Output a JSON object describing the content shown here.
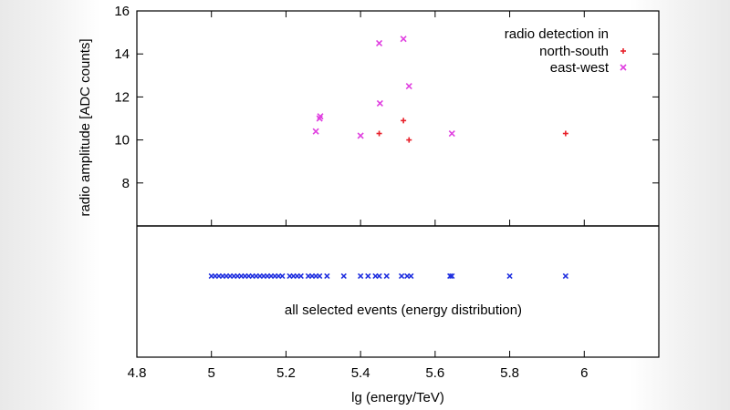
{
  "chart_data": {
    "type": "scatter",
    "title": "",
    "xlabel": "lg (energy/TeV)",
    "ylabel": "radio amplitude [ADC counts]",
    "xlim": [
      4.8,
      6.2
    ],
    "ylim": [
      6,
      16
    ],
    "x_ticks": [
      "4.8",
      "5",
      "5.2",
      "5.4",
      "5.6",
      "5.8",
      "6"
    ],
    "x_tick_values": [
      4.8,
      5.0,
      5.2,
      5.4,
      5.6,
      5.8,
      6.0
    ],
    "y_ticks": [
      "8",
      "10",
      "12",
      "14",
      "16"
    ],
    "y_tick_values": [
      8,
      10,
      12,
      14,
      16
    ],
    "grid": false,
    "legend": {
      "title": "radio detection in",
      "placement": "top-right",
      "entries": [
        "north-south",
        "east-west"
      ]
    },
    "series": [
      {
        "name": "north-south",
        "color": "#e8202a",
        "marker": "plus",
        "x": [
          5.45,
          5.515,
          5.53,
          5.95
        ],
        "y": [
          10.3,
          10.9,
          10.0,
          10.3
        ]
      },
      {
        "name": "east-west",
        "color": "#e040e0",
        "marker": "cross",
        "x": [
          5.28,
          5.29,
          5.292,
          5.4,
          5.45,
          5.452,
          5.515,
          5.53,
          5.645
        ],
        "y": [
          10.4,
          11.0,
          11.1,
          10.2,
          14.5,
          11.7,
          14.7,
          12.5,
          10.3
        ]
      }
    ],
    "lower_panel": {
      "annotation": "all selected events (energy distribution)",
      "color": "#2030e0",
      "marker": "cross",
      "x": [
        5.0,
        5.01,
        5.02,
        5.03,
        5.04,
        5.05,
        5.06,
        5.07,
        5.08,
        5.09,
        5.1,
        5.11,
        5.12,
        5.13,
        5.14,
        5.15,
        5.16,
        5.17,
        5.18,
        5.19,
        5.21,
        5.22,
        5.23,
        5.24,
        5.26,
        5.27,
        5.28,
        5.29,
        5.31,
        5.355,
        5.4,
        5.42,
        5.44,
        5.45,
        5.47,
        5.51,
        5.525,
        5.535,
        5.64,
        5.645,
        5.8,
        5.95
      ]
    }
  }
}
